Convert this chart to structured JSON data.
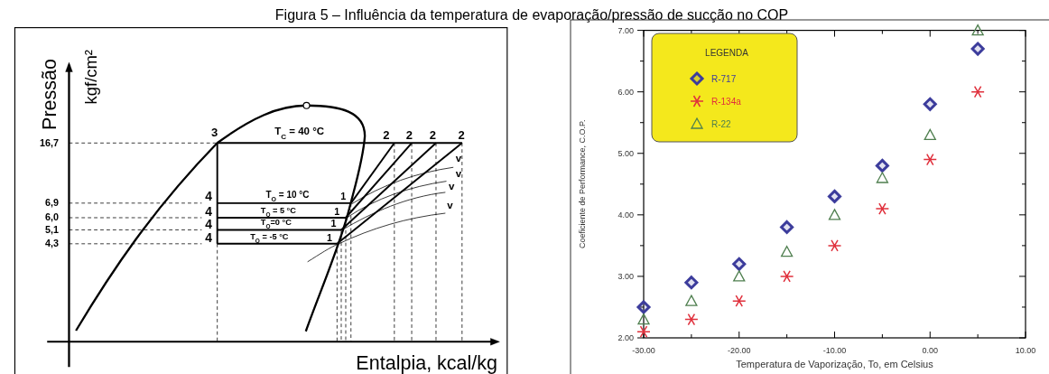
{
  "chart_data": [
    {
      "type": "other",
      "title": "Figura 5 – Influência da temperatura de evaporação/pressão de sucção no COP",
      "ylabel": "Pressão",
      "xlabel": "Entalpia, kcal/kg",
      "annotations": [
        "kgf/cm²",
        "3",
        "2",
        "2",
        "2",
        "2",
        "T$_{C}$ = 40 °C",
        "T$_{O}$ = 10 °C",
        "T$_{O}$ = 5 °C",
        "T$_{O}$=0 °C",
        "T$_{O}$ = -5 °C",
        "4",
        "4",
        "4",
        "4",
        "1",
        "1",
        "1",
        "1",
        "v",
        "v",
        "v",
        "v",
        "16,7",
        "6,9",
        "6,0",
        "5,1",
        "4,3"
      ]
    },
    {
      "type": "scatter",
      "xlabel": "Temperatura de Vaporização, To, em Celsius",
      "ylabel": "Coeficiente de Performance, C.O.P.",
      "legend_title": "LEGENDA",
      "legend": "top left",
      "x": [
        -30,
        -25,
        -20,
        -15,
        -10,
        -5,
        0,
        5
      ],
      "xlim": [
        -30,
        10
      ],
      "ylim": [
        2,
        7
      ],
      "xticks": [
        {
          "value": -30,
          "label": "-30.00"
        },
        {
          "value": -25,
          "label": null
        },
        {
          "value": -20,
          "label": "-20.00"
        },
        {
          "value": -15,
          "label": null
        },
        {
          "value": -10,
          "label": "-10.00"
        },
        {
          "value": -5,
          "label": null
        },
        {
          "value": 0,
          "label": "0.00"
        },
        {
          "value": 5,
          "label": null
        },
        {
          "value": 10,
          "label": "10.00"
        }
      ],
      "yticks": [
        {
          "value": 2,
          "label": "2.00"
        },
        {
          "value": 2.5,
          "label": null
        },
        {
          "value": 3,
          "label": "3.00"
        },
        {
          "value": 3.5,
          "label": null
        },
        {
          "value": 4,
          "label": "4.00"
        },
        {
          "value": 4.5,
          "label": null
        },
        {
          "value": 5,
          "label": "5.00"
        },
        {
          "value": 5.5,
          "label": null
        },
        {
          "value": 6,
          "label": "6.00"
        },
        {
          "value": 6.5,
          "label": null
        },
        {
          "value": 7,
          "label": "7.00"
        }
      ],
      "series": [
        {
          "name": "R-717",
          "color": "#3c3c9c",
          "marker": "diamond",
          "values": [
            2.5,
            2.9,
            3.2,
            3.8,
            4.3,
            4.8,
            5.8,
            6.7
          ]
        },
        {
          "name": "R-134a",
          "color": "#e0303c",
          "marker": "cross",
          "values": [
            2.1,
            2.3,
            2.6,
            3.0,
            3.5,
            4.1,
            4.9,
            6.0
          ]
        },
        {
          "name": "R-22",
          "color": "#4f7f4f",
          "marker": "triangle",
          "values": [
            2.3,
            2.6,
            3.0,
            3.4,
            4.0,
            4.6,
            5.3,
            7.0
          ]
        }
      ]
    }
  ]
}
